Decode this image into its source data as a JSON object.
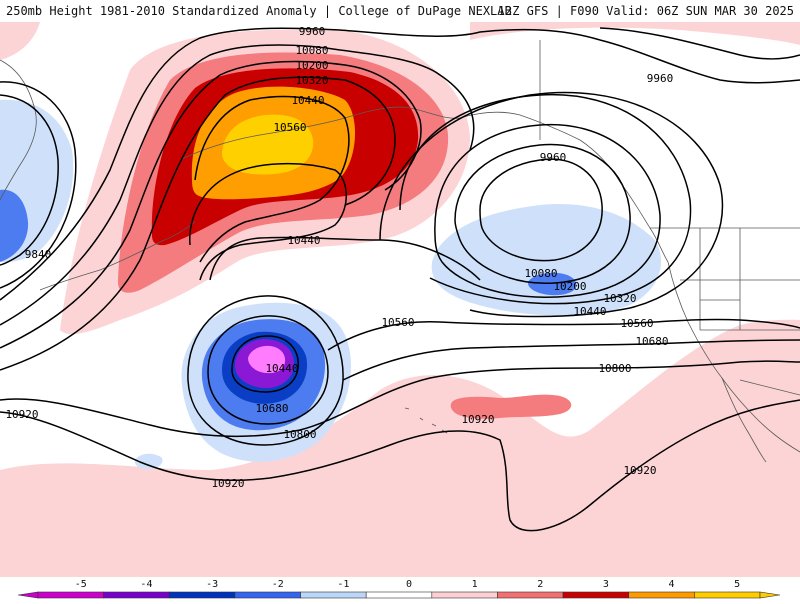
{
  "header": {
    "title": "250mb Height 1981-2010 Standardized Anomaly | College of DuPage NEXLAB",
    "run": "12Z GFS | F090 Valid: 06Z SUN MAR 30 2025"
  },
  "contour_labels": {
    "l1": "9960",
    "l2": "10080",
    "l3": "10200",
    "l4": "10320",
    "l5": "10440",
    "l6": "10560",
    "l7": "9960",
    "l8": "9960",
    "l9": "9840",
    "l10": "10440",
    "l11": "10080",
    "l12": "10200",
    "l13": "10320",
    "l14": "10440",
    "l15": "10560",
    "l16": "10560",
    "l17": "10680",
    "l18": "10440",
    "l19": "10680",
    "l20": "10800",
    "l21": "10800",
    "l22": "10920",
    "l23": "10920",
    "l24": "10920",
    "l25": "10920"
  },
  "colorbar": {
    "ticks": [
      "-5",
      "-4",
      "-3",
      "-2",
      "-1",
      "0",
      "1",
      "2",
      "3",
      "4",
      "5"
    ],
    "colors": [
      "#cc00cc",
      "#7700cc",
      "#0033bb",
      "#3366ee",
      "#bcd6f7",
      "#ffffff",
      "#fcd0d2",
      "#f27072",
      "#c80000",
      "#ff9900",
      "#ffcc00"
    ]
  },
  "anomaly_colors": {
    "neg1": "#cfe1fa",
    "neg2": "#4c7cf0",
    "neg3": "#0a3ec4",
    "neg4": "#8a18d4",
    "neg5": "#ff7cff",
    "pos1": "#fcd4d6",
    "pos2": "#f47b7e",
    "pos3": "#c90000",
    "pos4": "#ff9e00",
    "pos5": "#ffd000"
  }
}
